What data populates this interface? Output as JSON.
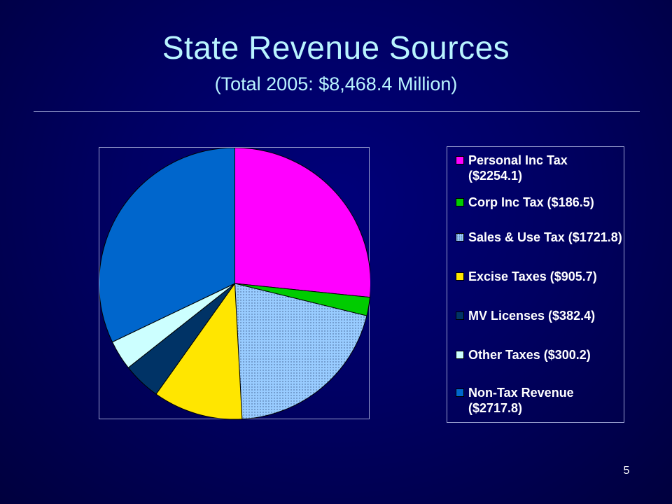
{
  "slide": {
    "title": "State Revenue Sources",
    "subtitle": "(Total 2005: $8,468.4 Million)",
    "page_number": "5"
  },
  "chart_data": {
    "type": "pie",
    "title": "State Revenue Sources",
    "subtitle": "(Total 2005: $8,468.4 Million)",
    "unit": "Million",
    "total": 8468.4,
    "legend_position": "right",
    "slices": [
      {
        "label": "Personal Inc Tax ($2254.1)",
        "value": 2254.1,
        "color": "#ff00ff",
        "pattern": "solid"
      },
      {
        "label": "Corp Inc Tax ($186.5)",
        "value": 186.5,
        "color": "#00cc00",
        "pattern": "solid"
      },
      {
        "label": "Sales & Use Tax ($1721.8)",
        "value": 1721.8,
        "color": "#99ccff",
        "pattern": "dotted"
      },
      {
        "label": "Excise Taxes ($905.7)",
        "value": 905.7,
        "color": "#ffe600",
        "pattern": "solid"
      },
      {
        "label": "MV Licenses ($382.4)",
        "value": 382.4,
        "color": "#003366",
        "pattern": "solid"
      },
      {
        "label": "Other Taxes ($300.2)",
        "value": 300.2,
        "color": "#ccffff",
        "pattern": "solid"
      },
      {
        "label": "Non-Tax Revenue ($2717.8)",
        "value": 2717.8,
        "color": "#0066cc",
        "pattern": "solid"
      }
    ]
  }
}
